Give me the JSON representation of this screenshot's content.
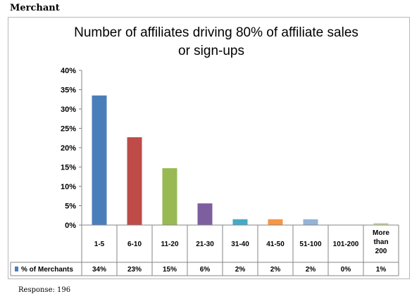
{
  "header": {
    "label": "Merchant"
  },
  "footer": {
    "note": "Response: 196"
  },
  "chart_data": {
    "type": "bar",
    "title_line1": "Number of affiliates driving 80% of affiliate sales",
    "title_line2": "or sign-ups",
    "categories": [
      "1-5",
      "6-10",
      "11-20",
      "21-30",
      "31-40",
      "41-50",
      "51-100",
      "101-200",
      "More than 200"
    ],
    "series": [
      {
        "name": "% of Merchants",
        "values": [
          33.5,
          22.7,
          14.7,
          5.6,
          1.5,
          1.5,
          1.5,
          0,
          0.5
        ],
        "labels": [
          "34%",
          "23%",
          "15%",
          "6%",
          "2%",
          "2%",
          "2%",
          "0%",
          "1%"
        ]
      }
    ],
    "bar_colors": [
      "#4a7ebb",
      "#be4b48",
      "#98b954",
      "#7d5fa0",
      "#46aac5",
      "#f79646",
      "#95b3d7",
      "#d99694",
      "#c3d69b"
    ],
    "ylim": [
      0,
      40
    ],
    "yticks": [
      "0%",
      "5%",
      "10%",
      "15%",
      "20%",
      "25%",
      "30%",
      "35%",
      "40%"
    ],
    "legend_marker_color": "#4a7ebb",
    "grid": false
  }
}
